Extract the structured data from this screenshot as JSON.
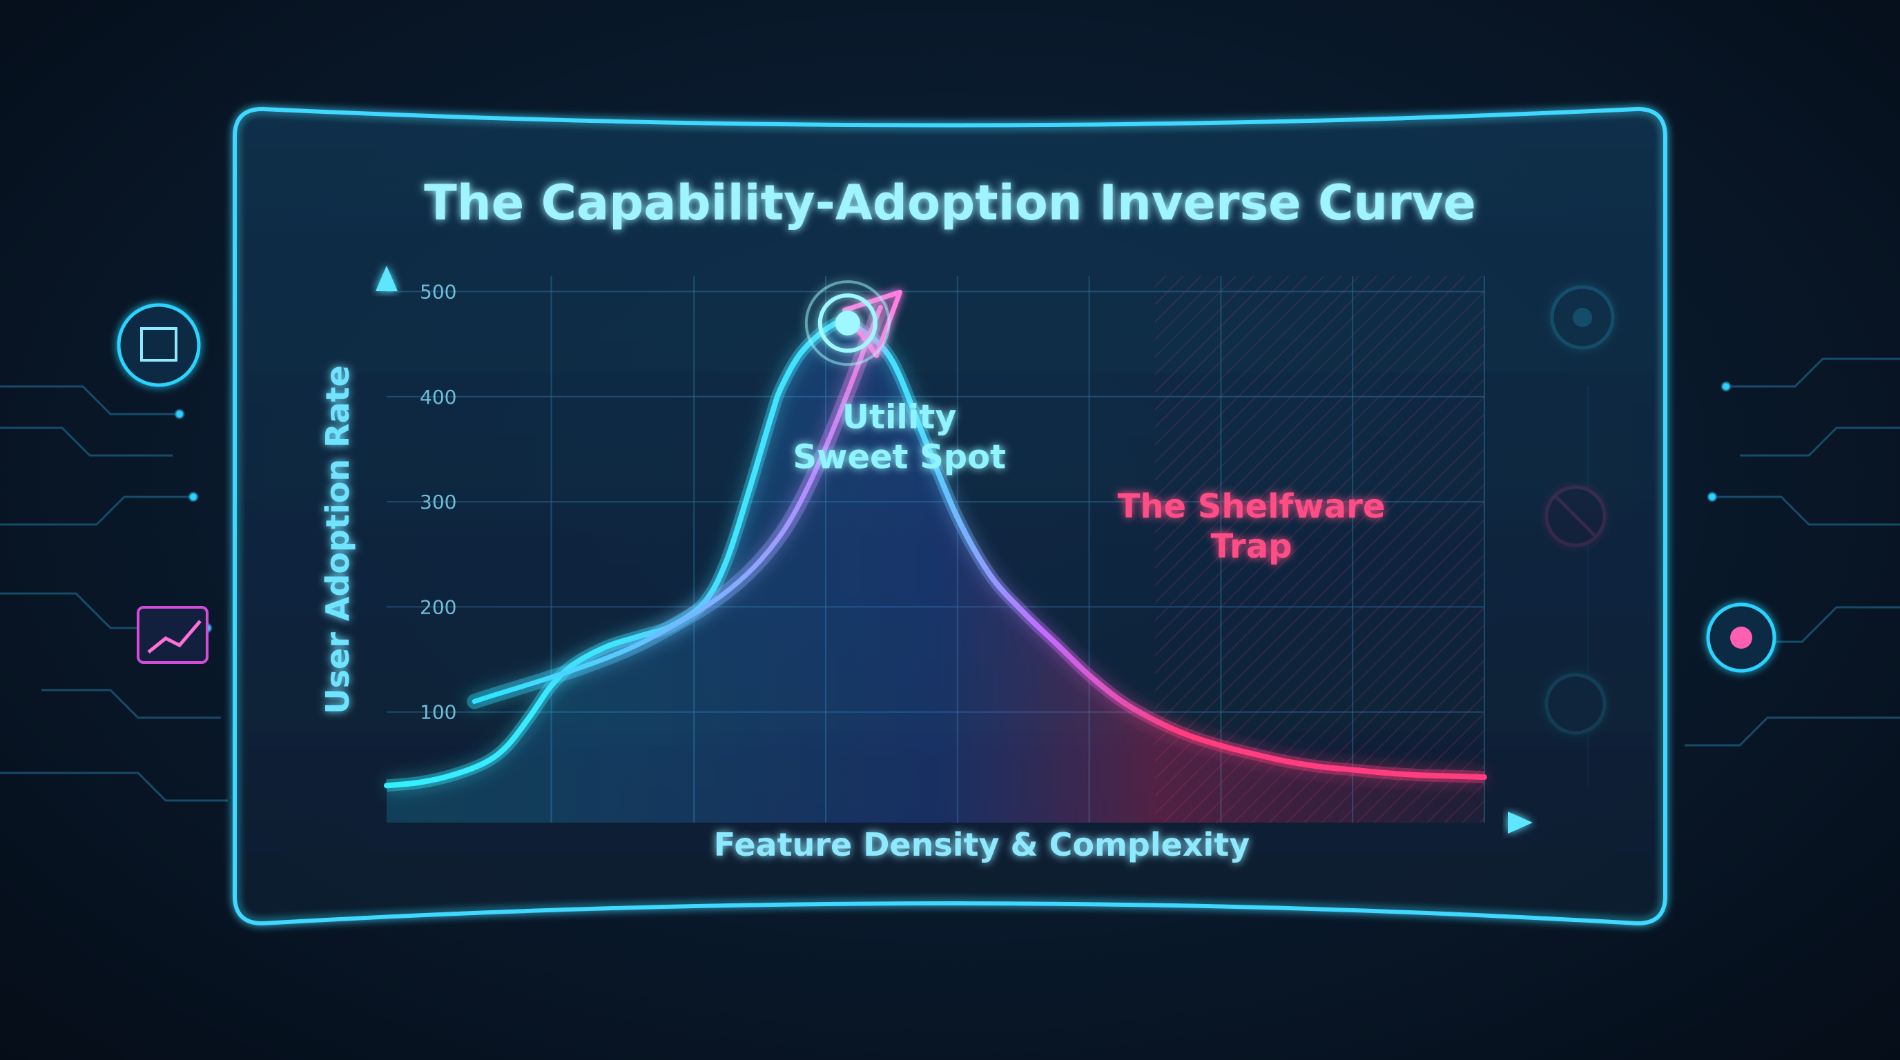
{
  "chart_data": {
    "type": "line",
    "title": "The Capability-Adoption Inverse Curve",
    "xlabel": "Feature Density & Complexity",
    "ylabel": "User Adoption Rate",
    "yticks": [
      100,
      200,
      300,
      400,
      500
    ],
    "ylim": [
      0,
      520
    ],
    "grid": true,
    "series": [
      {
        "x": [
          0,
          3,
          6,
          9,
          11,
          13,
          15,
          17,
          20,
          23,
          26,
          29,
          31,
          33,
          35,
          36,
          38,
          41,
          43,
          46,
          49,
          52,
          55,
          58,
          61,
          64,
          67,
          70,
          73,
          76,
          79,
          82,
          85,
          88,
          91,
          94,
          97,
          100
        ],
        "y": [
          30,
          33,
          40,
          52,
          68,
          95,
          125,
          145,
          162,
          172,
          182,
          205,
          245,
          310,
          380,
          410,
          445,
          470,
          465,
          435,
          360,
          285,
          230,
          195,
          165,
          135,
          110,
          92,
          78,
          68,
          60,
          53,
          48,
          45,
          42,
          40,
          39,
          38
        ],
        "colors": [
          "#33f0ff",
          "#ff3d7f"
        ]
      }
    ],
    "annotations": [
      {
        "text_lines": [
          "Utility",
          "Sweet Spot"
        ],
        "x": 42,
        "y": 370,
        "color": "#8ff4ff"
      },
      {
        "text_lines": [
          "The Shelfware",
          "Trap"
        ],
        "x": 75,
        "y": 285,
        "color": "#ff4d86"
      }
    ],
    "arrow": {
      "x": [
        8,
        24,
        36,
        45
      ],
      "y": [
        110,
        170,
        270,
        485
      ],
      "color": "#ff7ee0"
    },
    "peak_marker": {
      "x": 42,
      "y": 470,
      "color": "#9ff8ff"
    }
  }
}
